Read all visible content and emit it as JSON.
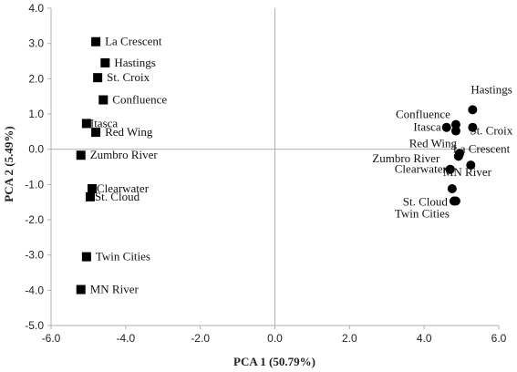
{
  "chart_data": {
    "type": "scatter",
    "xlabel": "PCA 1 (50.79%)",
    "ylabel": "PCA 2 (5.49%)",
    "xlim": [
      -6.0,
      6.0
    ],
    "ylim": [
      -5.0,
      4.0
    ],
    "xticks": [
      "-6.0",
      "-4.0",
      "-2.0",
      "0.0",
      "2.0",
      "4.0",
      "6.0"
    ],
    "yticks": [
      "4.0",
      "3.0",
      "2.0",
      "1.0",
      "0.0",
      "-1.0",
      "-2.0",
      "-3.0",
      "-4.0",
      "-5.0"
    ],
    "grid": false,
    "series": [
      {
        "marker": "square",
        "color": "#000000",
        "points": [
          {
            "label": "La Crescent",
            "x": -4.8,
            "y": 3.05
          },
          {
            "label": "Hastings",
            "x": -4.55,
            "y": 2.45
          },
          {
            "label": "St. Croix",
            "x": -4.75,
            "y": 2.03
          },
          {
            "label": "Confluence",
            "x": -4.6,
            "y": 1.4
          },
          {
            "label": "Itasca",
            "x": -5.05,
            "y": 0.73
          },
          {
            "label": "Red Wing",
            "x": -4.8,
            "y": 0.48
          },
          {
            "label": "Zumbro River",
            "x": -5.2,
            "y": -0.17
          },
          {
            "label": "Clearwater",
            "x": -4.9,
            "y": -1.12
          },
          {
            "label": "St. Cloud",
            "x": -4.95,
            "y": -1.35
          },
          {
            "label": "Twin Cities",
            "x": -5.05,
            "y": -3.05
          },
          {
            "label": "MN River",
            "x": -5.2,
            "y": -3.98
          }
        ]
      },
      {
        "marker": "circle",
        "color": "#000000",
        "points": [
          {
            "label": "Hastings",
            "x": 5.3,
            "y": 1.12
          },
          {
            "label": "Confluence",
            "x": 4.85,
            "y": 0.7
          },
          {
            "label": "Itasca",
            "x": 4.6,
            "y": 0.62
          },
          {
            "label": "St. Croix",
            "x": 5.3,
            "y": 0.62
          },
          {
            "label": "",
            "x": 4.85,
            "y": 0.52
          },
          {
            "label": "Red Wing",
            "x": 4.95,
            "y": -0.12
          },
          {
            "label": "La Crescent",
            "x": 4.92,
            "y": -0.2
          },
          {
            "label": "Zumbro River",
            "x": 5.25,
            "y": -0.45
          },
          {
            "label": "Clearwater",
            "x": 4.7,
            "y": -0.57
          },
          {
            "label": "MN River",
            "x": 4.75,
            "y": -1.12
          },
          {
            "label": "St. Cloud",
            "x": 4.8,
            "y": -1.47
          },
          {
            "label": "Twin Cities",
            "x": 4.85,
            "y": -1.47
          }
        ]
      }
    ],
    "point_labels": [
      {
        "text": "La Crescent",
        "ref": [
          0,
          0
        ]
      },
      {
        "text": "Hastings",
        "ref": [
          0,
          1
        ]
      },
      {
        "text": "St. Croix",
        "ref": [
          0,
          2
        ]
      },
      {
        "text": "Confluence",
        "ref": [
          0,
          3
        ]
      },
      {
        "text": "Itasca",
        "ref": [
          0,
          4
        ]
      },
      {
        "text": "Red Wing",
        "ref": [
          0,
          5
        ]
      },
      {
        "text": "Zumbro River",
        "ref": [
          0,
          6
        ]
      },
      {
        "text": "Clearwater",
        "ref": [
          0,
          7
        ]
      },
      {
        "text": "St. Cloud",
        "ref": [
          0,
          8
        ]
      },
      {
        "text": "Twin Cities",
        "ref": [
          0,
          9
        ]
      },
      {
        "text": "MN River",
        "ref": [
          0,
          10
        ]
      },
      {
        "text": "Hastings",
        "ref": [
          1,
          0
        ]
      },
      {
        "text": "Confluence",
        "ref": [
          1,
          1
        ]
      },
      {
        "text": "Itasca",
        "ref": [
          1,
          2
        ]
      },
      {
        "text": "St. Croix",
        "ref": [
          1,
          3
        ]
      },
      {
        "text": "Red Wing",
        "ref": [
          1,
          5
        ]
      },
      {
        "text": "La Crescent",
        "ref": [
          1,
          6
        ]
      },
      {
        "text": "Zumbro River",
        "ref": [
          1,
          7
        ]
      },
      {
        "text": "Clearwater",
        "ref": [
          1,
          8
        ]
      },
      {
        "text": "MN River",
        "ref": [
          1,
          9
        ]
      },
      {
        "text": "St. Cloud",
        "ref": [
          1,
          10
        ]
      },
      {
        "text": "Twin Cities",
        "ref": [
          1,
          11
        ]
      }
    ]
  }
}
